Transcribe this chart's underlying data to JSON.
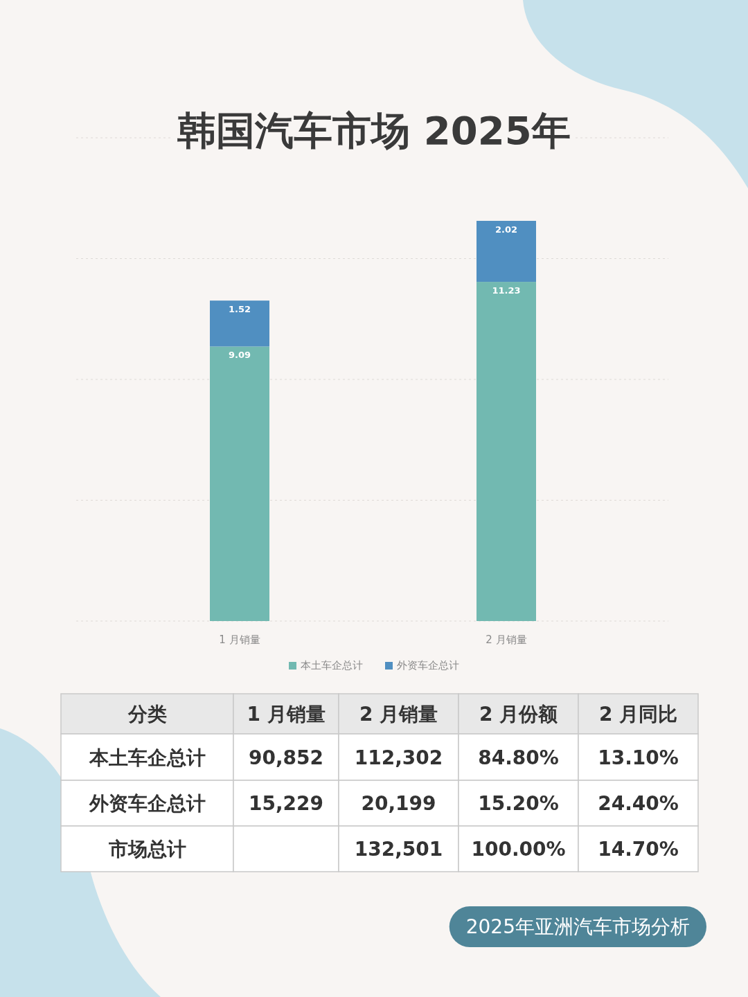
{
  "chart_data": [
    {
      "type": "bar",
      "title": "韩国汽车市场 2025年",
      "categories": [
        "1 月销量",
        "2 月销量"
      ],
      "stacked": true,
      "series": [
        {
          "name": "本土车企总计",
          "color": "#72b9b1",
          "values": [
            9.09,
            11.23
          ]
        },
        {
          "name": "外资车企总计",
          "color": "#508fc1",
          "values": [
            1.52,
            2.02
          ]
        }
      ],
      "ylim": [
        0,
        16
      ],
      "yticks": [
        {
          "value": 0,
          "label": null
        },
        {
          "value": 4,
          "label": null
        },
        {
          "value": 8,
          "label": null
        },
        {
          "value": 12,
          "label": null
        },
        {
          "value": 16,
          "label": null
        }
      ],
      "grid": "y",
      "tick_labels": "x",
      "legend": "bottom",
      "data_labels": true
    },
    {
      "type": "other",
      "ylabel": "分类",
      "categories": [
        "1 月销量",
        "2 月销量",
        "2 月份额",
        "2 月同比"
      ],
      "y_categories": [
        "本土车企总计",
        "外资车企总计",
        "市场总计"
      ],
      "cell_labels": [
        [
          "90,852",
          "112,302",
          "84.80%",
          "13.10%"
        ],
        [
          "15,229",
          "20,199",
          "15.20%",
          "24.40%"
        ],
        [
          null,
          "132,501",
          "100.00%",
          "14.70%"
        ]
      ],
      "annotations": [
        "2025年亚洲汽车市场分析"
      ]
    }
  ]
}
